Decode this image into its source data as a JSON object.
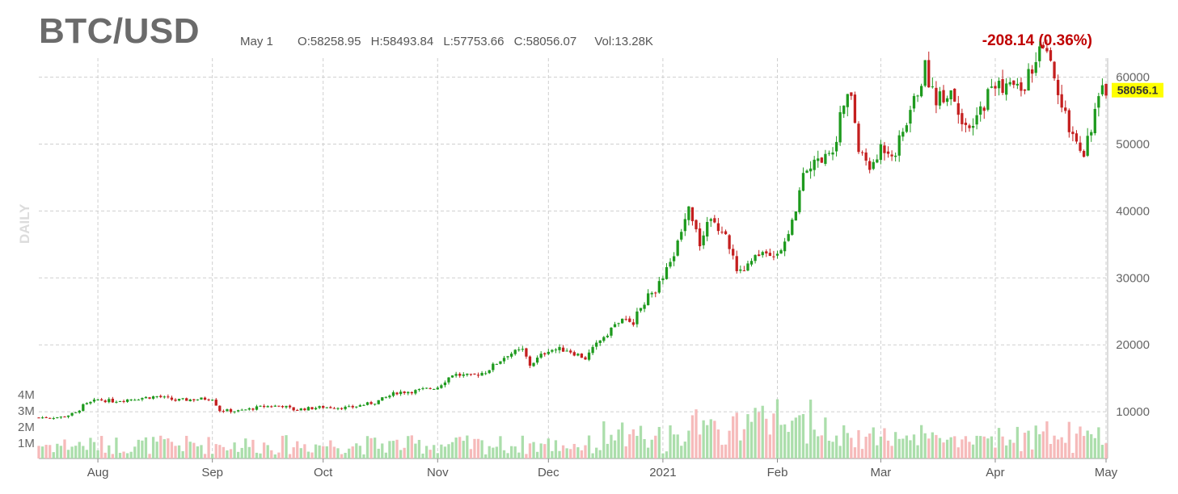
{
  "header": {
    "symbol": "BTC/USD",
    "date": "May 1",
    "open": "O:58258.95",
    "high": "H:58493.84",
    "low": "L:57753.66",
    "close": "C:58056.07",
    "volume": "Vol:13.28K",
    "change": "-208.14 (0.36%)",
    "period": "DAILY"
  },
  "colors": {
    "up": "#1e9a1e",
    "down": "#c41f1f",
    "vol_up": "#a6dca6",
    "vol_down": "#f5b6b6",
    "grid": "#cfcfcf",
    "last_price_bg": "#ffff00",
    "change_text": "#c00000"
  },
  "chart_data": {
    "type": "candlestick",
    "title": "BTC/USD",
    "interval": "daily",
    "x_tick_labels": [
      "Aug",
      "Sep",
      "Oct",
      "Nov",
      "Dec",
      "2021",
      "Feb",
      "Mar",
      "Apr",
      "May"
    ],
    "x_range": [
      "2020-07-16",
      "2021-05-01"
    ],
    "price_axis": {
      "ticks": [
        10000,
        20000,
        30000,
        40000,
        50000,
        60000
      ],
      "range": [
        0,
        65000
      ],
      "side": "right"
    },
    "volume_axis": {
      "ticks": [
        "1M",
        "2M",
        "3M",
        "4M"
      ],
      "range": [
        0,
        5000000
      ],
      "side": "left"
    },
    "last_price_label": "58056.1",
    "last_price": 58056.1,
    "grid": true,
    "close_points": [
      {
        "date": "2020-07-16",
        "close": 9130
      },
      {
        "date": "2020-07-22",
        "close": 9200
      },
      {
        "date": "2020-07-26",
        "close": 9800
      },
      {
        "date": "2020-07-28",
        "close": 10900
      },
      {
        "date": "2020-08-01",
        "close": 11800
      },
      {
        "date": "2020-08-05",
        "close": 11600
      },
      {
        "date": "2020-08-10",
        "close": 11900
      },
      {
        "date": "2020-08-17",
        "close": 12300
      },
      {
        "date": "2020-08-22",
        "close": 11700
      },
      {
        "date": "2020-09-01",
        "close": 12000
      },
      {
        "date": "2020-09-03",
        "close": 10200
      },
      {
        "date": "2020-09-08",
        "close": 10100
      },
      {
        "date": "2020-09-15",
        "close": 10800
      },
      {
        "date": "2020-09-20",
        "close": 10900
      },
      {
        "date": "2020-09-23",
        "close": 10300
      },
      {
        "date": "2020-10-01",
        "close": 10700
      },
      {
        "date": "2020-10-08",
        "close": 10600
      },
      {
        "date": "2020-10-15",
        "close": 11400
      },
      {
        "date": "2020-10-21",
        "close": 12900
      },
      {
        "date": "2020-10-26",
        "close": 13100
      },
      {
        "date": "2020-11-01",
        "close": 13700
      },
      {
        "date": "2020-11-05",
        "close": 15600
      },
      {
        "date": "2020-11-10",
        "close": 15300
      },
      {
        "date": "2020-11-14",
        "close": 16000
      },
      {
        "date": "2020-11-20",
        "close": 18600
      },
      {
        "date": "2020-11-24",
        "close": 19200
      },
      {
        "date": "2020-11-26",
        "close": 17000
      },
      {
        "date": "2020-12-01",
        "close": 19300
      },
      {
        "date": "2020-12-06",
        "close": 19300
      },
      {
        "date": "2020-12-11",
        "close": 18000
      },
      {
        "date": "2020-12-16",
        "close": 21300
      },
      {
        "date": "2020-12-20",
        "close": 23500
      },
      {
        "date": "2020-12-24",
        "close": 23500
      },
      {
        "date": "2020-12-27",
        "close": 26500
      },
      {
        "date": "2020-12-31",
        "close": 29000
      },
      {
        "date": "2021-01-03",
        "close": 32000
      },
      {
        "date": "2021-01-06",
        "close": 36800
      },
      {
        "date": "2021-01-08",
        "close": 40500
      },
      {
        "date": "2021-01-11",
        "close": 35500
      },
      {
        "date": "2021-01-14",
        "close": 39200
      },
      {
        "date": "2021-01-18",
        "close": 36500
      },
      {
        "date": "2021-01-21",
        "close": 30800
      },
      {
        "date": "2021-01-25",
        "close": 32300
      },
      {
        "date": "2021-01-29",
        "close": 34300
      },
      {
        "date": "2021-02-01",
        "close": 33500
      },
      {
        "date": "2021-02-05",
        "close": 38000
      },
      {
        "date": "2021-02-08",
        "close": 46500
      },
      {
        "date": "2021-02-12",
        "close": 47500
      },
      {
        "date": "2021-02-16",
        "close": 49200
      },
      {
        "date": "2021-02-19",
        "close": 55900
      },
      {
        "date": "2021-02-21",
        "close": 57500
      },
      {
        "date": "2021-02-23",
        "close": 48800
      },
      {
        "date": "2021-02-27",
        "close": 46300
      },
      {
        "date": "2021-03-01",
        "close": 49600
      },
      {
        "date": "2021-03-05",
        "close": 48800
      },
      {
        "date": "2021-03-09",
        "close": 54900
      },
      {
        "date": "2021-03-13",
        "close": 61200
      },
      {
        "date": "2021-03-16",
        "close": 56800
      },
      {
        "date": "2021-03-20",
        "close": 58100
      },
      {
        "date": "2021-03-25",
        "close": 51300
      },
      {
        "date": "2021-03-31",
        "close": 58700
      },
      {
        "date": "2021-04-05",
        "close": 58800
      },
      {
        "date": "2021-04-08",
        "close": 58000
      },
      {
        "date": "2021-04-13",
        "close": 63500
      },
      {
        "date": "2021-04-15",
        "close": 63200
      },
      {
        "date": "2021-04-17",
        "close": 60000
      },
      {
        "date": "2021-04-18",
        "close": 56200
      },
      {
        "date": "2021-04-22",
        "close": 51700
      },
      {
        "date": "2021-04-25",
        "close": 49000
      },
      {
        "date": "2021-04-28",
        "close": 54800
      },
      {
        "date": "2021-04-30",
        "close": 57700
      },
      {
        "date": "2021-05-01",
        "close": 58056
      }
    ]
  }
}
